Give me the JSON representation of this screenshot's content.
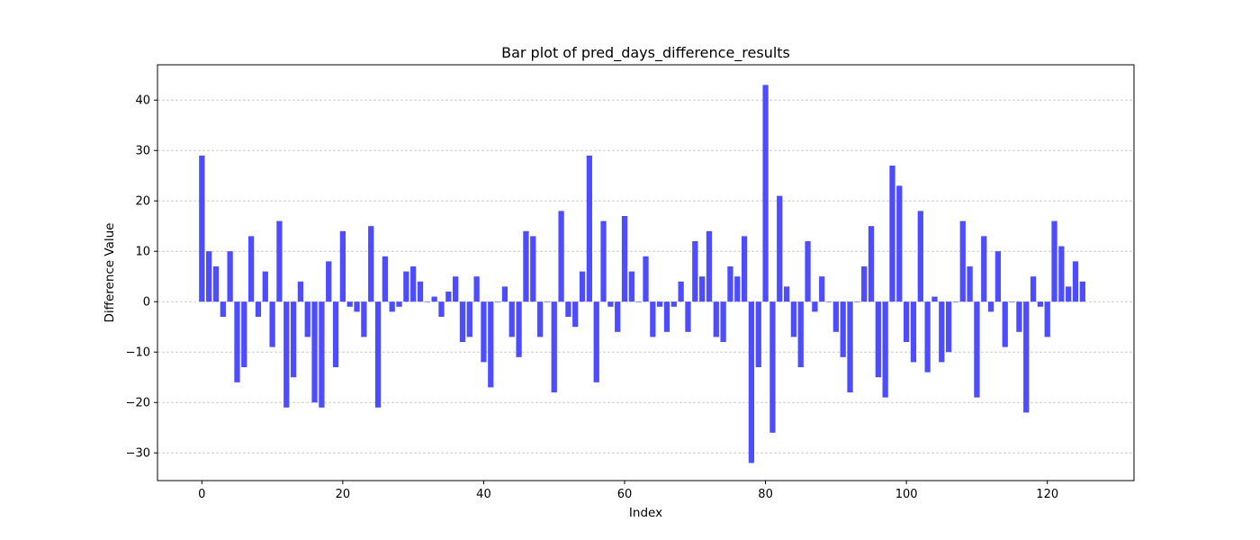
{
  "chart_data": {
    "type": "bar",
    "title": "Bar plot of pred_days_difference_results",
    "xlabel": "Index",
    "ylabel": "Difference Value",
    "xlim": [
      -6.3,
      132.3
    ],
    "ylim": [
      -35.5,
      47.0
    ],
    "xticks": [
      0,
      20,
      40,
      60,
      80,
      100,
      120
    ],
    "yticks": [
      -30,
      -20,
      -10,
      0,
      10,
      20,
      30,
      40
    ],
    "grid": "horizontal, dashed",
    "bar_color": "#4d4dff",
    "x": [
      0,
      1,
      2,
      3,
      4,
      5,
      6,
      7,
      8,
      9,
      10,
      11,
      12,
      13,
      14,
      15,
      16,
      17,
      18,
      19,
      20,
      21,
      22,
      23,
      24,
      25,
      26,
      27,
      28,
      29,
      30,
      31,
      32,
      33,
      34,
      35,
      36,
      37,
      38,
      39,
      40,
      41,
      42,
      43,
      44,
      45,
      46,
      47,
      48,
      49,
      50,
      51,
      52,
      53,
      54,
      55,
      56,
      57,
      58,
      59,
      60,
      61,
      62,
      63,
      64,
      65,
      66,
      67,
      68,
      69,
      70,
      71,
      72,
      73,
      74,
      75,
      76,
      77,
      78,
      79,
      80,
      81,
      82,
      83,
      84,
      85,
      86,
      87,
      88,
      89,
      90,
      91,
      92,
      93,
      94,
      95,
      96,
      97,
      98,
      99,
      100,
      101,
      102,
      103,
      104,
      105,
      106,
      107,
      108,
      109,
      110,
      111,
      112,
      113,
      114,
      115,
      116,
      117,
      118,
      119,
      120,
      121,
      122,
      123,
      124,
      125
    ],
    "values": [
      29,
      10,
      7,
      -3,
      10,
      -16,
      -13,
      13,
      -3,
      6,
      -9,
      16,
      -21,
      -15,
      4,
      -7,
      -20,
      -21,
      8,
      -13,
      14,
      -1,
      -2,
      -7,
      15,
      -21,
      9,
      -2,
      -1,
      6,
      7,
      4,
      0,
      1,
      -3,
      2,
      5,
      -8,
      -7,
      5,
      -12,
      -17,
      0,
      3,
      -7,
      -11,
      14,
      13,
      -7,
      0,
      -18,
      18,
      -3,
      -5,
      6,
      29,
      -16,
      16,
      -1,
      -6,
      17,
      6,
      0,
      9,
      -7,
      -1,
      -6,
      -1,
      4,
      -6,
      12,
      5,
      14,
      -7,
      -8,
      7,
      5,
      13,
      -32,
      -13,
      43,
      -26,
      21,
      3,
      -7,
      -13,
      12,
      -2,
      5,
      0,
      -6,
      -11,
      -18,
      0,
      7,
      15,
      -15,
      -19,
      27,
      23,
      -8,
      -12,
      18,
      -14,
      1,
      -12,
      -10,
      0,
      16,
      7,
      -19,
      13,
      -2,
      10,
      -9,
      0,
      -6,
      -22,
      5,
      -1,
      -7,
      16,
      11,
      3,
      8,
      4
    ]
  }
}
